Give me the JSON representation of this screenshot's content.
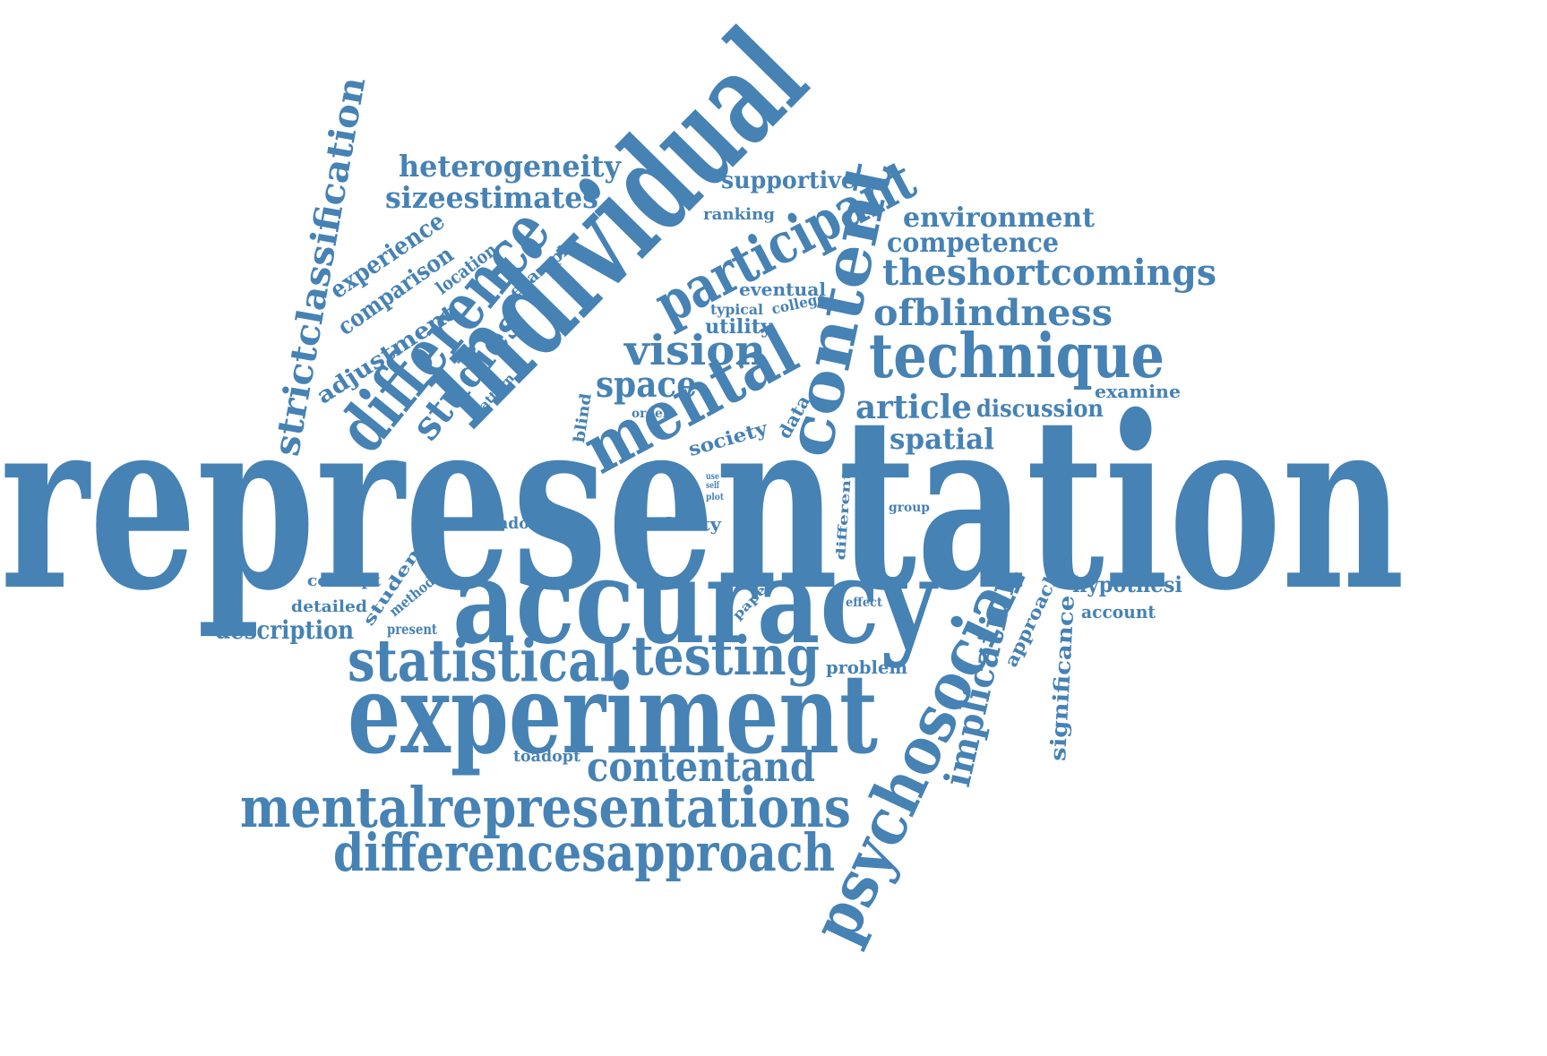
{
  "color": "#4682b4",
  "words": [
    "representation",
    "accuracy",
    "experiment",
    "individual",
    "mentalrepresentations",
    "differencesapproach",
    "statistical",
    "testing",
    "technique",
    "psychosocial",
    "mental",
    "content",
    "difference",
    "participant",
    "theshortcomings",
    "ofblindness",
    "contentand",
    "vision",
    "space",
    "studies",
    "article",
    "spatial",
    "implication",
    "strictclassification",
    "heterogeneity",
    "sizeestimates",
    "environment",
    "competence",
    "supportive",
    "discussion",
    "hypothesi",
    "significance",
    "description",
    "comparison",
    "adjustment",
    "experience",
    "location",
    "example",
    "ranking",
    "eventual",
    "utility",
    "typical",
    "college",
    "examine",
    "account",
    "approach",
    "problem",
    "toadopt",
    "london",
    "ability",
    "society",
    "data",
    "blind",
    "order",
    "pattern",
    "concept",
    "detailed",
    "method",
    "present",
    "student",
    "paper",
    "effect",
    "different",
    "group",
    "use",
    "self",
    "plot"
  ]
}
